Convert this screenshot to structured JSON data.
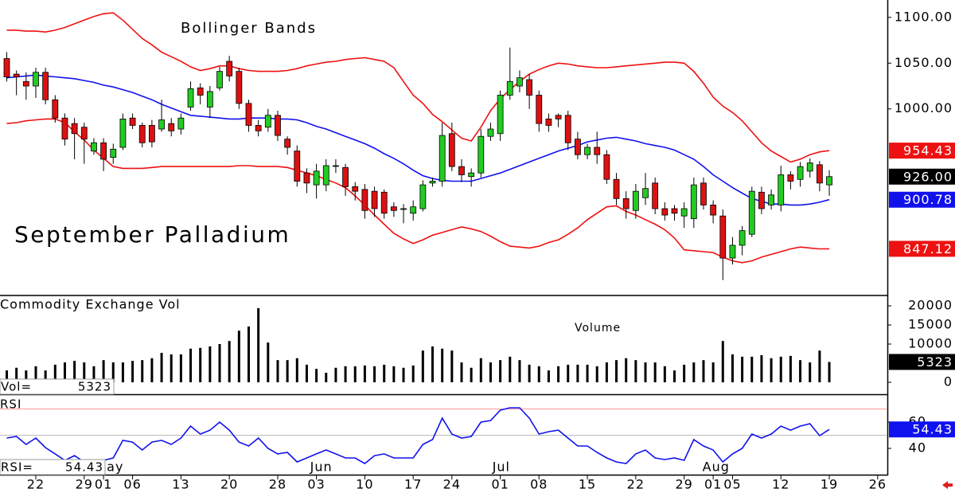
{
  "chart_data": [
    {
      "type": "candlestick",
      "title": "September Palladium",
      "subtitle": "Bollinger Bands",
      "xlim": [
        -0.7,
        91.0
      ],
      "xticks": [
        {
          "value": 3,
          "label": "22"
        },
        {
          "value": 8,
          "label": "29"
        },
        {
          "value": 10,
          "label": "01"
        },
        {
          "value": 13,
          "label": "06"
        },
        {
          "value": 18,
          "label": "13"
        },
        {
          "value": 23,
          "label": "20"
        },
        {
          "value": 28,
          "label": "28"
        },
        {
          "value": 32,
          "label": "03"
        },
        {
          "value": 37,
          "label": "10"
        },
        {
          "value": 42,
          "label": "17"
        },
        {
          "value": 46,
          "label": "24"
        },
        {
          "value": 51,
          "label": "01"
        },
        {
          "value": 55,
          "label": "08"
        },
        {
          "value": 60,
          "label": "15"
        },
        {
          "value": 65,
          "label": "22"
        },
        {
          "value": 70,
          "label": "29"
        },
        {
          "value": 73,
          "label": "01"
        },
        {
          "value": 75,
          "label": "05"
        },
        {
          "value": 80,
          "label": "12"
        },
        {
          "value": 85,
          "label": "19"
        },
        {
          "value": 90,
          "label": "26"
        }
      ],
      "month_ticks": [
        {
          "value": 10.6,
          "label": "May"
        },
        {
          "value": 32.5,
          "label": "Jun"
        },
        {
          "value": 51.1,
          "label": "Jul"
        },
        {
          "value": 73.3,
          "label": "Aug"
        }
      ],
      "ylim": [
        797,
        1119
      ],
      "yticks": [
        {
          "value": 1000,
          "label": "1000.00"
        },
        {
          "value": 1050,
          "label": "1050.00"
        },
        {
          "value": 1100,
          "label": "1100.00"
        }
      ],
      "up_color": "#22cc22",
      "down_color": "#dd1111",
      "open": [
        1055,
        1038,
        1030,
        1025,
        1040,
        1010,
        990,
        984,
        980,
        954,
        963,
        947,
        958,
        990,
        982,
        982,
        978,
        984,
        978,
        1002,
        1023,
        1002,
        1023,
        1052,
        1041,
        1006,
        982,
        980,
        993,
        967,
        954,
        930,
        917,
        917,
        938,
        936,
        915,
        912,
        910,
        909,
        893,
        891,
        886,
        891,
        919,
        921,
        973,
        937,
        926,
        930,
        970,
        973,
        1015,
        1025,
        1032,
        1015,
        989,
        993,
        993,
        967,
        950,
        958,
        950,
        923,
        902,
        889,
        903,
        919,
        891,
        891,
        883,
        880,
        919,
        895,
        883,
        837,
        851,
        863,
        909,
        895,
        895,
        928,
        923,
        932,
        939,
        917
      ],
      "high": [
        1062,
        1042,
        1040,
        1045,
        1045,
        1015,
        995,
        990,
        985,
        968,
        968,
        962,
        995,
        995,
        985,
        988,
        1010,
        990,
        995,
        1030,
        1028,
        1025,
        1046,
        1058,
        1045,
        1010,
        988,
        1000,
        998,
        970,
        960,
        935,
        940,
        945,
        945,
        940,
        920,
        918,
        915,
        912,
        898,
        896,
        900,
        922,
        925,
        985,
        985,
        945,
        935,
        978,
        985,
        1020,
        1067,
        1042,
        1038,
        1020,
        995,
        995,
        998,
        975,
        962,
        975,
        955,
        930,
        910,
        918,
        930,
        925,
        898,
        895,
        898,
        925,
        925,
        900,
        890,
        860,
        872,
        915,
        915,
        912,
        938,
        932,
        942,
        946,
        943,
        933
      ],
      "low": [
        1030,
        1015,
        1010,
        1012,
        1005,
        985,
        960,
        945,
        940,
        950,
        932,
        940,
        955,
        978,
        958,
        958,
        975,
        970,
        972,
        998,
        1005,
        990,
        1020,
        1030,
        1000,
        975,
        970,
        975,
        965,
        950,
        915,
        908,
        902,
        910,
        930,
        905,
        900,
        880,
        882,
        880,
        882,
        875,
        878,
        888,
        915,
        915,
        932,
        920,
        915,
        925,
        965,
        965,
        1010,
        1018,
        1000,
        975,
        975,
        980,
        955,
        945,
        945,
        940,
        918,
        895,
        880,
        880,
        895,
        885,
        878,
        878,
        870,
        870,
        890,
        875,
        813,
        830,
        840,
        860,
        885,
        890,
        888,
        912,
        915,
        925,
        910,
        905
      ],
      "close": [
        1035,
        1035,
        1025,
        1040,
        1010,
        990,
        967,
        973,
        967,
        963,
        945,
        956,
        989,
        982,
        963,
        964,
        988,
        976,
        990,
        1022,
        1015,
        1019,
        1041,
        1036,
        1006,
        982,
        976,
        993,
        971,
        958,
        921,
        919,
        932,
        938,
        938,
        915,
        910,
        889,
        891,
        886,
        889,
        891,
        893,
        917,
        921,
        971,
        937,
        928,
        930,
        970,
        978,
        1015,
        1030,
        1034,
        1015,
        984,
        982,
        989,
        963,
        950,
        958,
        950,
        923,
        902,
        891,
        910,
        913,
        891,
        884,
        886,
        891,
        917,
        895,
        884,
        837,
        851,
        867,
        910,
        891,
        906,
        928,
        921,
        937,
        941,
        919,
        926
      ],
      "close_label": "926.00",
      "bands": [
        {
          "color": "#ee1111",
          "last_label": "954.43",
          "values": [
            1086,
            1086,
            1085,
            1085,
            1084,
            1086,
            1089,
            1093,
            1097,
            1101,
            1104,
            1105,
            1097,
            1087,
            1077,
            1070,
            1062,
            1057,
            1052,
            1046,
            1042,
            1044,
            1047,
            1047,
            1044,
            1042,
            1041,
            1041,
            1041,
            1042,
            1044,
            1047,
            1049,
            1051,
            1052,
            1054,
            1055,
            1056,
            1054,
            1052,
            1045,
            1030,
            1015,
            1006,
            994,
            986,
            977,
            968,
            965,
            980,
            998,
            1011,
            1021,
            1030,
            1038,
            1043,
            1047,
            1050,
            1049,
            1047,
            1046,
            1045,
            1045,
            1046,
            1047,
            1048,
            1049,
            1050,
            1051,
            1051,
            1050,
            1041,
            1028,
            1013,
            1003,
            996,
            987,
            975,
            963,
            954,
            948,
            942,
            945,
            950,
            953,
            954.43
          ]
        },
        {
          "color": "#1111ee",
          "last_label": "900.78",
          "values": [
            1034,
            1035,
            1036,
            1037,
            1036,
            1035,
            1034,
            1033,
            1031,
            1029,
            1026,
            1024,
            1021,
            1018,
            1014,
            1010,
            1005,
            1001,
            997,
            993,
            992,
            991,
            990,
            989,
            989,
            990,
            990,
            990,
            989,
            989,
            988,
            985,
            981,
            978,
            974,
            970,
            966,
            962,
            957,
            951,
            946,
            940,
            933,
            927,
            924,
            922,
            921,
            921,
            921,
            924,
            927,
            930,
            934,
            938,
            942,
            946,
            950,
            954,
            957,
            960,
            964,
            966,
            968,
            969,
            967,
            965,
            962,
            960,
            958,
            955,
            950,
            945,
            937,
            928,
            921,
            914,
            908,
            902,
            899,
            896,
            896,
            895,
            895,
            896,
            898,
            900.78
          ]
        },
        {
          "color": "#ee1111",
          "last_label": "847.12",
          "values": [
            984,
            985,
            987,
            988,
            989,
            989,
            985,
            975,
            966,
            955,
            946,
            937,
            935,
            935,
            935,
            936,
            937,
            937,
            937,
            937,
            937,
            937,
            937,
            937,
            938,
            938,
            937,
            937,
            937,
            936,
            933,
            930,
            927,
            923,
            919,
            914,
            905,
            895,
            884,
            874,
            864,
            858,
            853,
            857,
            862,
            865,
            868,
            871,
            869,
            866,
            861,
            855,
            850,
            849,
            848,
            850,
            854,
            857,
            863,
            870,
            879,
            886,
            893,
            894,
            888,
            884,
            879,
            874,
            868,
            859,
            846,
            845,
            844,
            843,
            838,
            834,
            832,
            834,
            838,
            841,
            844,
            847,
            849,
            848,
            847,
            847.12
          ]
        }
      ]
    },
    {
      "type": "bar",
      "title": "Commodity Exchange Vol",
      "annotation": "Volume",
      "readout_label": "Vol=",
      "color": "#000000",
      "ylim": [
        -3125,
        22500
      ],
      "yticks": [
        0,
        10000,
        15000,
        20000
      ],
      "values": [
        3100,
        3800,
        3100,
        4200,
        3100,
        4600,
        5200,
        5600,
        5200,
        4200,
        5800,
        5200,
        5200,
        5600,
        5800,
        6300,
        7700,
        7300,
        7300,
        8800,
        9000,
        9400,
        10000,
        10800,
        13500,
        14600,
        19400,
        10400,
        5800,
        5800,
        6300,
        4600,
        3500,
        2500,
        3800,
        4200,
        4200,
        4400,
        4200,
        4600,
        4200,
        3800,
        4400,
        8300,
        9400,
        8800,
        8300,
        5200,
        3800,
        6300,
        5200,
        5800,
        6700,
        5800,
        4600,
        4200,
        3100,
        4200,
        4600,
        4600,
        4600,
        4200,
        5200,
        5800,
        6300,
        5800,
        5200,
        5200,
        4200,
        3100,
        4600,
        5200,
        5800,
        5200,
        10800,
        7300,
        6700,
        6700,
        7100,
        6300,
        6700,
        6900,
        5800,
        5200,
        8300,
        5323
      ]
    },
    {
      "type": "line",
      "title": "RSI",
      "readout_label": "RSI=",
      "color": "#1111ee",
      "ylim": [
        20,
        80
      ],
      "yticks": [
        40,
        60
      ],
      "hlines": [
        {
          "value": 70,
          "color": "#ff9999"
        },
        {
          "value": 50,
          "color": "#bbbbbb"
        }
      ],
      "values": [
        47.9,
        49.1,
        43.0,
        47.9,
        40.6,
        35.8,
        30.9,
        34.5,
        29.7,
        30.9,
        30.9,
        32.7,
        46.1,
        44.8,
        38.8,
        44.8,
        46.1,
        43.0,
        47.9,
        57.0,
        50.9,
        53.9,
        60.0,
        53.9,
        44.8,
        41.8,
        47.9,
        40.0,
        35.8,
        37.0,
        29.7,
        32.7,
        35.8,
        38.8,
        35.8,
        32.7,
        32.7,
        28.5,
        34.5,
        35.8,
        32.7,
        32.7,
        32.7,
        43.0,
        46.7,
        63.0,
        50.9,
        47.9,
        49.1,
        60.0,
        61.2,
        69.1,
        70.9,
        70.9,
        63.0,
        50.9,
        52.7,
        53.9,
        47.9,
        41.8,
        41.8,
        37.0,
        32.7,
        29.7,
        28.5,
        35.8,
        38.8,
        32.7,
        31.5,
        32.7,
        30.9,
        46.7,
        41.8,
        38.8,
        29.7,
        35.8,
        40.0,
        50.9,
        47.9,
        50.9,
        57.0,
        53.9,
        57.0,
        58.8,
        49.7,
        54.43
      ]
    }
  ]
}
